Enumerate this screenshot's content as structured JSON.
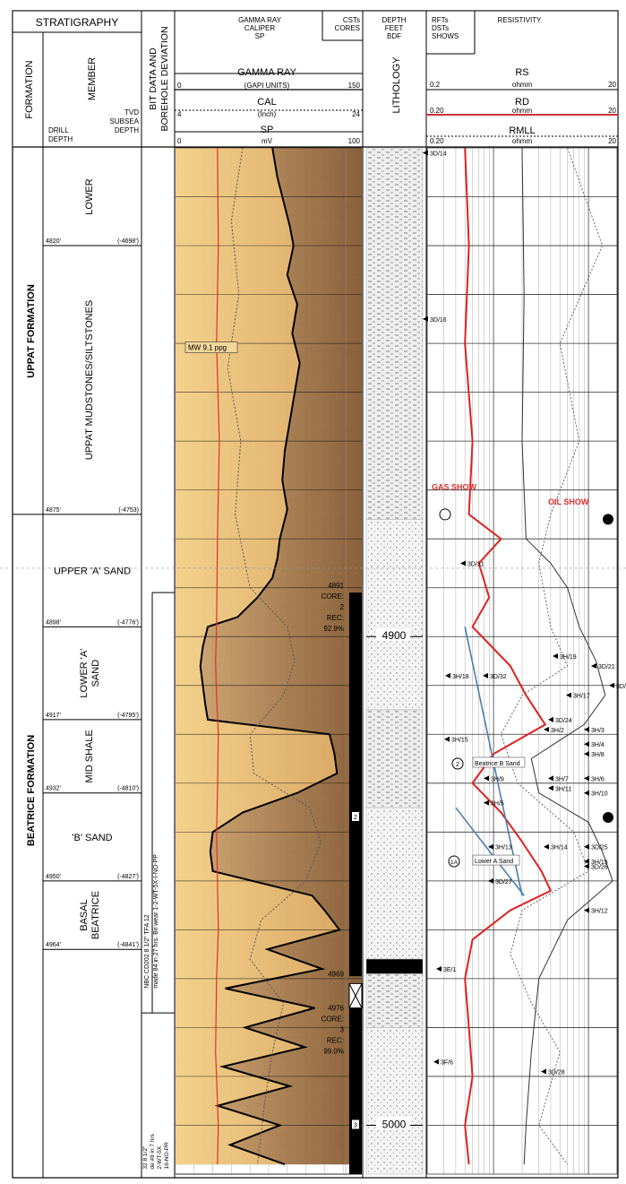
{
  "header": {
    "stratigraphy": "STRATIGRAPHY",
    "formation": "FORMATION",
    "member": "MEMBER",
    "drill_depth": "DRILL DEPTH",
    "tvd_subsea_depth": "TVD SUBSEA DEPTH",
    "bit_data": "BIT DATA AND BOREHOLE DEVIATION",
    "gr_block": [
      "GAMMA RAY",
      "CALIPER",
      "SP"
    ],
    "csts_cores": [
      "CSTs",
      "CORES"
    ],
    "depth_block": [
      "DEPTH",
      "FEET",
      "BDF"
    ],
    "lithology": "LITHOLOGY",
    "rfts_block": [
      "RFTs",
      "DSTs",
      "SHOWS"
    ],
    "resistivity": "RESISTIVITY"
  },
  "tracks": {
    "gamma_ray": {
      "name": "GAMMA RAY",
      "unit": "(GAPI UNITS)",
      "min": "0",
      "max": "150"
    },
    "caliper": {
      "name": "CAL",
      "unit": "(Inch)",
      "min": "4",
      "max": "24"
    },
    "sp": {
      "name": "SP",
      "unit": "mV",
      "min": "0",
      "max": "100"
    },
    "rs": {
      "name": "RS",
      "unit": "ohmm",
      "min": "0.2",
      "max": "20"
    },
    "rd": {
      "name": "RD",
      "unit": "ohmm",
      "min": "0.20",
      "max": "20"
    },
    "rmll": {
      "name": "RMLL",
      "unit": "ohmm",
      "min": "0.20",
      "max": "20"
    }
  },
  "formations": [
    "UPPAT FORMATION",
    "BEATRICE FORMATION"
  ],
  "members": [
    "LOWER",
    "UPPAT MUDSTONES/SILTSTONES",
    "UPPER 'A' SAND",
    "LOWER 'A' SAND",
    "MID SHALE",
    "'B' SAND",
    "BASAL BEATRICE"
  ],
  "depth_markers": [
    {
      "drill": "4820'",
      "tvd": "(-4698')"
    },
    {
      "drill": "4875'",
      "tvd": "(-4753)"
    },
    {
      "drill": "4898'",
      "tvd": "(-4776')"
    },
    {
      "drill": "4917'",
      "tvd": "(-4795')"
    },
    {
      "drill": "4932'",
      "tvd": "(-4810')"
    },
    {
      "drill": "4950'",
      "tvd": "(-4827')"
    },
    {
      "drill": "4964'",
      "tvd": "(-4841')"
    }
  ],
  "bit_texts": [
    "NBC CD202 8 1/2\" TFA 12",
    "made 84 in 27 hrs. Bit wear 1-2-WT-5X-I-NO-PP",
    "32 8 1/2\"",
    "de 49 in 7 hrs",
    "2-WT-5X",
    "16-NO-PR"
  ],
  "annotations": {
    "mud_weight": "MW 9.1 ppg",
    "gas_show": "GAS SHOW",
    "oil_show": "OIL SHOW",
    "core2": [
      "4891",
      "CORE:",
      "2",
      "REC:",
      "92.9%"
    ],
    "core3": [
      "4969",
      "4976",
      "CORE:",
      "3",
      "REC:",
      "99.0%"
    ],
    "core_num_2": "2",
    "core_num_3": "3",
    "depth_4900": "4900",
    "depth_5000": "5000",
    "beatrice_b_sand": "Beatrice B Sand",
    "lower_a_sand": "Lower A Sand",
    "circle_2": "2",
    "circle_1a": "1A"
  },
  "samples": [
    {
      "label": "3D/14",
      "track": "lith"
    },
    {
      "label": "3D/16",
      "track": "lith"
    },
    {
      "label": "3D/31",
      "track": "res"
    },
    {
      "label": "3H/18",
      "track": "res"
    },
    {
      "label": "3D/32",
      "track": "res"
    },
    {
      "label": "3H/19",
      "track": "res"
    },
    {
      "label": "3D/21",
      "track": "res"
    },
    {
      "label": "3D/2",
      "track": "res"
    },
    {
      "label": "3H/17",
      "track": "res"
    },
    {
      "label": "3D/24",
      "track": "res"
    },
    {
      "label": "3H/2",
      "track": "res"
    },
    {
      "label": "3H/3",
      "track": "res"
    },
    {
      "label": "3H/15",
      "track": "res"
    },
    {
      "label": "3H/4",
      "track": "res"
    },
    {
      "label": "3H/8",
      "track": "res"
    },
    {
      "label": "3H/9",
      "track": "res"
    },
    {
      "label": "3H/7",
      "track": "res"
    },
    {
      "label": "3H/6",
      "track": "res"
    },
    {
      "label": "3H/11",
      "track": "res"
    },
    {
      "label": "3H/10",
      "track": "res"
    },
    {
      "label": "3H/5",
      "track": "res"
    },
    {
      "label": "3H/13",
      "track": "res"
    },
    {
      "label": "3H/14",
      "track": "res"
    },
    {
      "label": "3D/25",
      "track": "res"
    },
    {
      "label": "3H/15",
      "track": "res"
    },
    {
      "label": "3D/26",
      "track": "res"
    },
    {
      "label": "3D/27",
      "track": "res"
    },
    {
      "label": "3H/12",
      "track": "res"
    },
    {
      "label": "3E/1",
      "track": "res"
    },
    {
      "label": "3F/6",
      "track": "res"
    },
    {
      "label": "3D/28",
      "track": "res"
    }
  ],
  "chart_data": {
    "type": "line",
    "depth_axis": {
      "unit": "ft",
      "range": [
        4800,
        5010
      ],
      "labels": [
        "4900",
        "5000"
      ]
    },
    "series": [
      {
        "name": "GAMMA RAY",
        "unit": "GAPI",
        "range": [
          0,
          150
        ],
        "depth": [
          4800,
          4806,
          4812,
          4816,
          4820,
          4826,
          4832,
          4838,
          4844,
          4850,
          4856,
          4862,
          4868,
          4874,
          4880,
          4884,
          4888,
          4892,
          4896,
          4898,
          4902,
          4906,
          4910,
          4914,
          4917,
          4920,
          4924,
          4928,
          4932,
          4936,
          4940,
          4944,
          4948,
          4950,
          4953,
          4956,
          4960,
          4964,
          4968,
          4972,
          4976,
          4980,
          4984,
          4988,
          4992,
          4996,
          5000,
          5004,
          5008
        ],
        "values": [
          78,
          82,
          88,
          92,
          95,
          90,
          98,
          94,
          100,
          96,
          92,
          88,
          86,
          90,
          84,
          82,
          78,
          66,
          50,
          26,
          22,
          20,
          22,
          24,
          26,
          124,
          128,
          130,
          98,
          54,
          30,
          28,
          30,
          62,
          110,
          120,
          132,
          74,
          118,
          40,
          112,
          56,
          104,
          38,
          92,
          34,
          84,
          44,
          88
        ]
      },
      {
        "name": "CAL",
        "unit": "Inch",
        "range": [
          4,
          24
        ],
        "depth": [
          4800,
          4820,
          4840,
          4860,
          4880,
          4898,
          4905,
          4912,
          4920,
          4932,
          4940,
          4950,
          4960,
          4970,
          4985,
          5000,
          5008
        ],
        "values": [
          8.5,
          8.6,
          8.4,
          8.7,
          8.5,
          8.4,
          8.3,
          8.4,
          8.6,
          8.5,
          8.4,
          8.5,
          8.6,
          8.4,
          8.3,
          8.6,
          8.5
        ]
      },
      {
        "name": "SP",
        "unit": "mV",
        "range": [
          0,
          100
        ],
        "depth": [
          4800,
          4815,
          4830,
          4845,
          4860,
          4875,
          4890,
          4898,
          4905,
          4912,
          4920,
          4928,
          4935,
          4942,
          4950,
          4958,
          4966,
          4975,
          4985,
          4995,
          5008
        ],
        "values": [
          36,
          30,
          34,
          28,
          35,
          32,
          40,
          60,
          64,
          58,
          40,
          42,
          72,
          78,
          70,
          46,
          40,
          58,
          52,
          48,
          44
        ]
      },
      {
        "name": "RS",
        "unit": "ohmm",
        "range": [
          0.2,
          20
        ],
        "depth": [
          4800,
          4830,
          4860,
          4880,
          4885,
          4890,
          4898,
          4905,
          4912,
          4918,
          4925,
          4932,
          4938,
          4944,
          4950,
          4958,
          4970,
          4985,
          5000,
          5008
        ],
        "values": [
          2,
          2.1,
          2.0,
          2.2,
          4,
          6,
          8,
          12,
          15,
          9,
          2.5,
          3,
          10,
          14,
          18,
          6,
          3,
          2.5,
          2.2,
          2.1
        ]
      },
      {
        "name": "RD",
        "unit": "ohmm",
        "range": [
          0.2,
          20
        ],
        "depth": [
          4800,
          4820,
          4840,
          4860,
          4875,
          4880,
          4885,
          4892,
          4898,
          4906,
          4912,
          4918,
          4924,
          4930,
          4936,
          4942,
          4948,
          4952,
          4956,
          4962,
          4970,
          4980,
          4990,
          5000,
          5008
        ],
        "values": [
          0.5,
          0.55,
          0.5,
          0.6,
          0.55,
          1.2,
          0.7,
          0.9,
          0.6,
          1.5,
          2.2,
          3.5,
          1.0,
          0.6,
          1.2,
          2.0,
          3.2,
          4.0,
          1.5,
          0.6,
          0.5,
          0.55,
          0.6,
          0.5,
          0.55
        ]
      },
      {
        "name": "RMLL",
        "unit": "ohmm",
        "range": [
          0.2,
          20
        ],
        "depth": [
          4800,
          4820,
          4840,
          4860,
          4875,
          4885,
          4898,
          4906,
          4912,
          4920,
          4930,
          4940,
          4948,
          4956,
          4965,
          4975,
          4985,
          5000,
          5008
        ],
        "values": [
          6,
          14,
          5,
          8,
          4,
          3,
          4,
          6,
          2,
          1.2,
          1.8,
          7,
          10,
          2,
          1.5,
          2.5,
          5,
          3,
          6
        ]
      }
    ]
  }
}
